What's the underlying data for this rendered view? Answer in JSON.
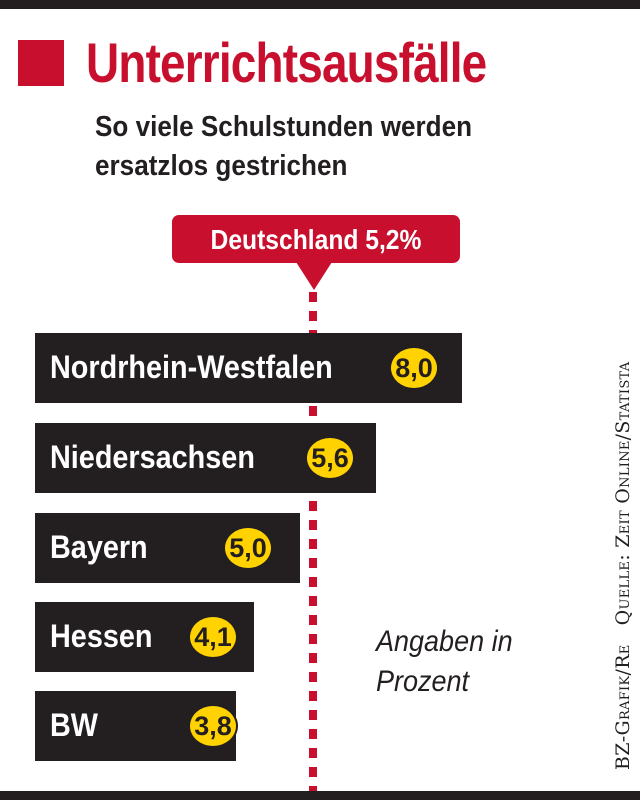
{
  "chart_data": {
    "type": "bar",
    "orientation": "horizontal",
    "title": "Unterrichtsausfälle",
    "subtitle": [
      "So viele Schulstunden werden",
      "ersatzlos gestrichen"
    ],
    "categories": [
      "Nordrhein-Westfalen",
      "Niedersachsen",
      "Bayern",
      "Hessen",
      "BW"
    ],
    "values": [
      8.0,
      5.6,
      5.0,
      4.1,
      3.8
    ],
    "value_labels": [
      "8,0",
      "5,6",
      "5,0",
      "4,1",
      "3,8"
    ],
    "reference": {
      "label": "Deutschland 5,2%",
      "value": 5.2
    },
    "unit_note": [
      "Angaben in",
      "Prozent"
    ],
    "source": "BZ-Grafik/Re   Quelle: Zeit Online/Statista"
  },
  "colors": {
    "accent": "#c8102e",
    "bar": "#231f20",
    "value_badge": "#ffd200"
  }
}
